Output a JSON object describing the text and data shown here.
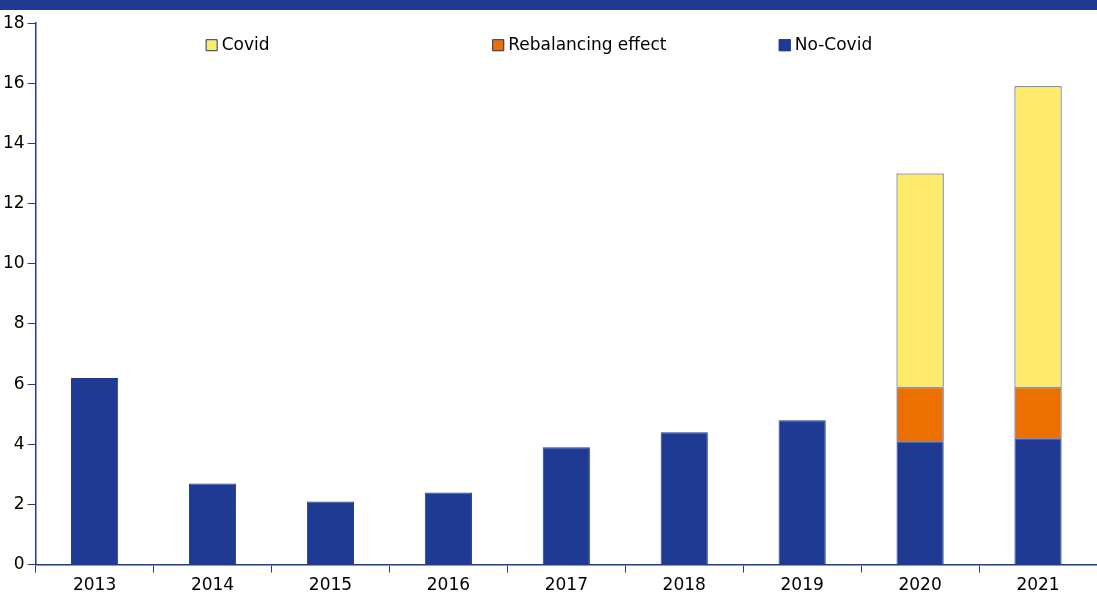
{
  "chart_data": {
    "type": "bar",
    "stacked": true,
    "categories": [
      "2013",
      "2014",
      "2015",
      "2016",
      "2017",
      "2018",
      "2019",
      "2020",
      "2021"
    ],
    "series": [
      {
        "name": "No-Covid",
        "color": "#1f3a93",
        "values": [
          6.2,
          2.7,
          2.1,
          2.4,
          3.9,
          4.4,
          4.8,
          4.1,
          4.2
        ]
      },
      {
        "name": "Rebalancing effect",
        "color": "#ec7000",
        "values": [
          null,
          null,
          null,
          null,
          null,
          null,
          null,
          1.8,
          1.7
        ]
      },
      {
        "name": "Covid",
        "color": "#ffeb6b",
        "values": [
          null,
          null,
          null,
          null,
          null,
          null,
          null,
          7.1,
          10.0
        ]
      }
    ],
    "ylim": [
      0,
      18
    ],
    "yticks": [
      0,
      2,
      4,
      6,
      8,
      10,
      12,
      14,
      16,
      18
    ],
    "grid": false,
    "legend": "top"
  }
}
